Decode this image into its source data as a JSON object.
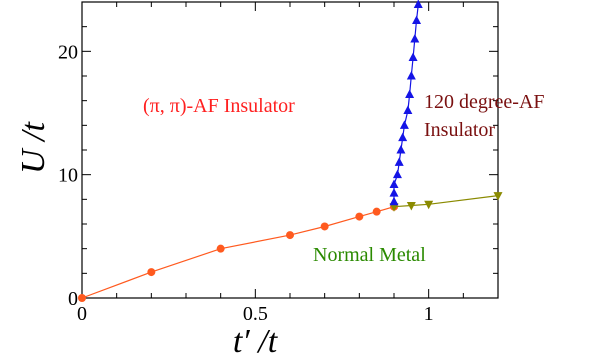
{
  "chart_data": {
    "type": "line",
    "xlabel": "t′ /t",
    "ylabel": "U /t",
    "xlim": [
      0,
      1.2
    ],
    "ylim": [
      0,
      24
    ],
    "xticks": [
      0,
      0.5,
      1
    ],
    "xtick_labels": [
      "0",
      "0.5",
      "1"
    ],
    "yticks": [
      0,
      10,
      20
    ],
    "ytick_labels": [
      "0",
      "10",
      "20"
    ],
    "grid": false,
    "series": [
      {
        "color": "#ff5a1f",
        "marker": "circle",
        "x": [
          0,
          0.2,
          0.4,
          0.6,
          0.7,
          0.8,
          0.85,
          0.9
        ],
        "y": [
          0,
          2.1,
          4.0,
          5.1,
          5.8,
          6.6,
          7.0,
          7.4
        ]
      },
      {
        "color": "#8a8a00",
        "marker": "triangle-down",
        "x": [
          0.9,
          0.95,
          1.0,
          1.2
        ],
        "y": [
          7.4,
          7.5,
          7.6,
          8.3
        ]
      },
      {
        "color": "#1414e6",
        "marker": "triangle-up",
        "x": [
          0.9,
          0.9,
          0.9,
          0.91,
          0.915,
          0.92,
          0.925,
          0.93,
          0.94,
          0.945,
          0.95,
          0.955,
          0.96,
          0.965,
          0.97
        ],
        "y": [
          7.8,
          8.5,
          9.2,
          10.0,
          11.0,
          12.0,
          13.0,
          14.0,
          15.2,
          16.5,
          18.0,
          19.5,
          21.0,
          22.5,
          23.8
        ]
      }
    ],
    "annotations": [
      {
        "id": "af-pi",
        "text": "(π, π)-AF Insulator",
        "color": "#ff2020"
      },
      {
        "id": "af-120-line1",
        "text": "120 degree-AF",
        "color": "#7a1010"
      },
      {
        "id": "af-120-line2",
        "text": "Insulator",
        "color": "#7a1010"
      },
      {
        "id": "normal-metal",
        "text": "Normal Metal",
        "color": "#2a8a00"
      }
    ]
  }
}
